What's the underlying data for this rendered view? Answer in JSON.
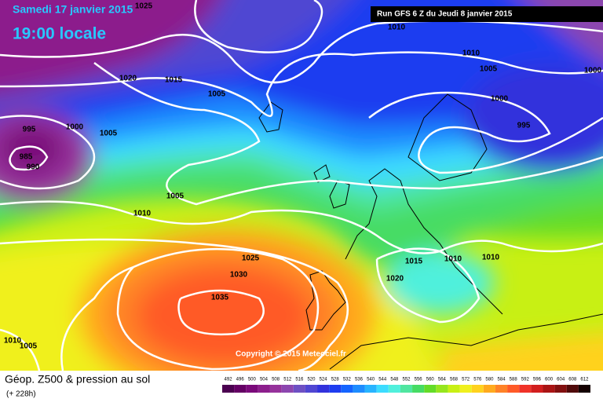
{
  "header": {
    "date": "Samedi 17 janvier 2015",
    "time": "19:00 locale",
    "run": "Run GFS 6 Z du Jeudi 8 janvier 2015"
  },
  "isobar_labels": [
    "1025",
    "1010",
    "1010",
    "1005",
    "1000",
    "1020",
    "1015",
    "1005",
    "1000",
    "995",
    "1000",
    "1005",
    "995",
    "985",
    "990",
    "1005",
    "1010",
    "1015",
    "1010",
    "1010",
    "1025",
    "1030",
    "1020",
    "1035",
    "1010",
    "1005"
  ],
  "copyright": "Copyright © 2015 Meteociel.fr",
  "legend": {
    "title": "Géop. Z500 & pression au sol",
    "lead": "(+ 228h)",
    "scale": [
      492,
      496,
      500,
      504,
      508,
      512,
      516,
      520,
      524,
      528,
      532,
      536,
      540,
      544,
      548,
      552,
      556,
      560,
      564,
      568,
      572,
      576,
      580,
      584,
      588,
      592,
      596,
      600,
      604,
      608,
      612
    ],
    "colors": [
      "#4b0050",
      "#640064",
      "#7a0a7a",
      "#8c1e8c",
      "#96329b",
      "#8c46af",
      "#6e50c3",
      "#5046d2",
      "#3232dc",
      "#1e3cf0",
      "#1464ff",
      "#1e8cff",
      "#28b4ff",
      "#3cdcff",
      "#50f0dc",
      "#50e6a0",
      "#46dc64",
      "#64dc28",
      "#96e61e",
      "#c8f014",
      "#f0f01e",
      "#ffd21e",
      "#ffaa1e",
      "#ff8228",
      "#ff5a28",
      "#f03228",
      "#d21e1e",
      "#aa1414",
      "#821010",
      "#500a0a",
      "#140000"
    ]
  }
}
